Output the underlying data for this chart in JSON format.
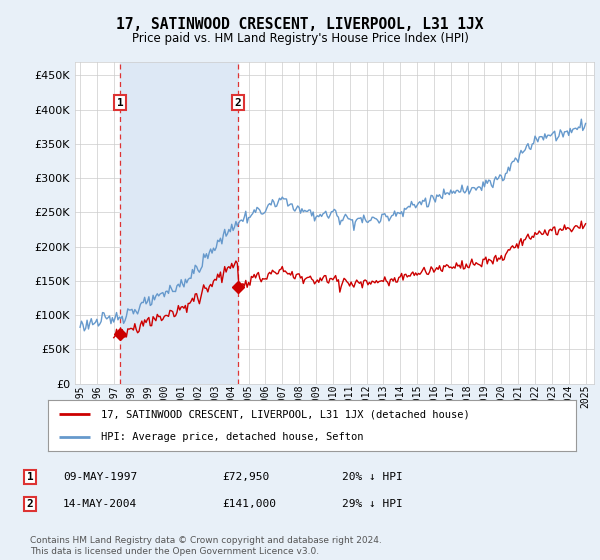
{
  "title": "17, SATINWOOD CRESCENT, LIVERPOOL, L31 1JX",
  "subtitle": "Price paid vs. HM Land Registry's House Price Index (HPI)",
  "legend_line1": "17, SATINWOOD CRESCENT, LIVERPOOL, L31 1JX (detached house)",
  "legend_line2": "HPI: Average price, detached house, Sefton",
  "annotation1_label": "1",
  "annotation1_date": "09-MAY-1997",
  "annotation1_price": "£72,950",
  "annotation1_hpi": "20% ↓ HPI",
  "annotation1_year": 1997.37,
  "annotation1_value": 72950,
  "annotation2_label": "2",
  "annotation2_date": "14-MAY-2004",
  "annotation2_price": "£141,000",
  "annotation2_hpi": "29% ↓ HPI",
  "annotation2_year": 2004.37,
  "annotation2_value": 141000,
  "red_line_color": "#cc0000",
  "blue_line_color": "#6699cc",
  "shade_color": "#dde8f5",
  "background_color": "#e8f0f8",
  "plot_bg_color": "#ffffff",
  "grid_color": "#cccccc",
  "dashed_line_color": "#dd3333",
  "footer": "Contains HM Land Registry data © Crown copyright and database right 2024.\nThis data is licensed under the Open Government Licence v3.0.",
  "ylim": [
    0,
    470000
  ],
  "yticks": [
    0,
    50000,
    100000,
    150000,
    200000,
    250000,
    300000,
    350000,
    400000,
    450000
  ],
  "xlim": [
    1994.7,
    2025.5
  ],
  "xticks": [
    1995,
    1996,
    1997,
    1998,
    1999,
    2000,
    2001,
    2002,
    2003,
    2004,
    2005,
    2006,
    2007,
    2008,
    2009,
    2010,
    2011,
    2012,
    2013,
    2014,
    2015,
    2016,
    2017,
    2018,
    2019,
    2020,
    2021,
    2022,
    2023,
    2024,
    2025
  ]
}
